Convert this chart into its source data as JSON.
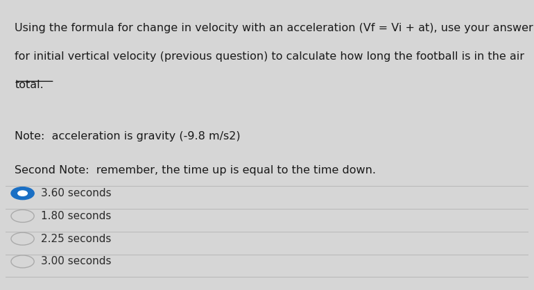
{
  "background_color": "#d6d6d6",
  "content_bg": "#e8e8e8",
  "question_text_line1": "Using the formula for change in velocity with an acceleration (Vf = Vi + at), use your answer",
  "question_text_line2": "for initial vertical velocity (previous question) to calculate how long the football is in the air",
  "question_text_line3": "total.",
  "note1": "Note:  acceleration is gravity (-9.8 m/s2)",
  "note2": "Second Note:  remember, the time up is equal to the time down.",
  "choices": [
    {
      "label": "3.60 seconds",
      "selected": true
    },
    {
      "label": "1.80 seconds",
      "selected": false
    },
    {
      "label": "2.25 seconds",
      "selected": false
    },
    {
      "label": "3.00 seconds",
      "selected": false
    }
  ],
  "selected_color": "#1a6fc4",
  "unselected_color": "#aaaaaa",
  "text_color": "#1a1a1a",
  "choice_text_color": "#2a2a2a",
  "divider_color": "#bbbbbb",
  "font_size_question": 11.5,
  "font_size_notes": 11.5,
  "font_size_choices": 11.0,
  "underline_word": "total"
}
